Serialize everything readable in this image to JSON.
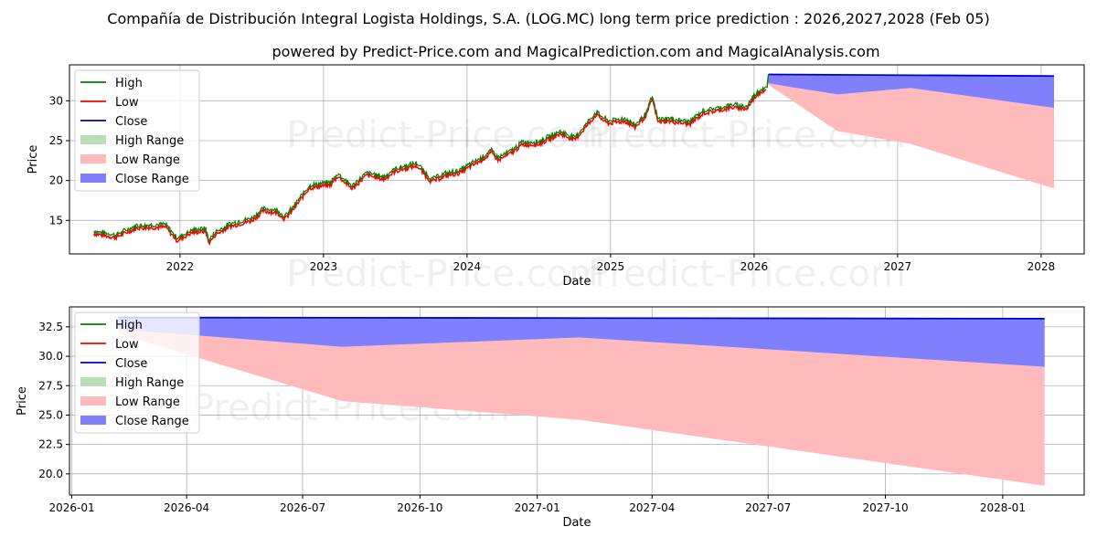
{
  "title": "Compañía de Distribución Integral Logista Holdings, S.A. (LOG.MC) long term price prediction : 2026,2027,2028 (Feb 05)",
  "subtitle": "powered by Predict-Price.com and MagicalPrediction.com and MagicalAnalysis.com",
  "watermark": "Predict-Price.com",
  "colors": {
    "high": "#008000",
    "low": "#ff0000",
    "close": "#0000cd",
    "high_range": "#b9ddb4",
    "low_range": "#ffbbbb",
    "close_range": "#8080ff"
  },
  "legend": [
    "High",
    "Low",
    "Close",
    "High Range",
    "Low Range",
    "Close Range"
  ],
  "chart_data": [
    {
      "type": "line",
      "panel": "history",
      "xlabel": "Date",
      "ylabel": "Price",
      "xlim": [
        2021.23,
        2028.3
      ],
      "ylim": [
        10.8,
        34.5
      ],
      "xticks": [
        2022,
        2023,
        2024,
        2025,
        2026,
        2027,
        2028
      ],
      "xtick_labels": [
        "2022",
        "2023",
        "2024",
        "2025",
        "2026",
        "2027",
        "2028"
      ],
      "yticks": [
        15,
        20,
        25,
        30
      ],
      "ytick_labels": [
        "15",
        "20",
        "25",
        "30"
      ],
      "price_anchors": [
        [
          2021.4,
          13.5
        ],
        [
          2021.55,
          13.0
        ],
        [
          2021.7,
          14.2
        ],
        [
          2021.9,
          14.3
        ],
        [
          2021.98,
          12.6
        ],
        [
          2022.08,
          13.6
        ],
        [
          2022.18,
          13.8
        ],
        [
          2022.2,
          12.3
        ],
        [
          2022.25,
          13.4
        ],
        [
          2022.35,
          14.4
        ],
        [
          2022.5,
          15.1
        ],
        [
          2022.58,
          16.3
        ],
        [
          2022.68,
          16.1
        ],
        [
          2022.73,
          15.3
        ],
        [
          2022.78,
          16.3
        ],
        [
          2022.9,
          19.2
        ],
        [
          2023.05,
          19.6
        ],
        [
          2023.1,
          20.7
        ],
        [
          2023.2,
          19.1
        ],
        [
          2023.3,
          20.8
        ],
        [
          2023.42,
          20.3
        ],
        [
          2023.5,
          21.3
        ],
        [
          2023.65,
          22.0
        ],
        [
          2023.75,
          20.0
        ],
        [
          2023.85,
          20.7
        ],
        [
          2023.95,
          21.1
        ],
        [
          2024.1,
          22.7
        ],
        [
          2024.17,
          23.6
        ],
        [
          2024.22,
          22.7
        ],
        [
          2024.32,
          23.7
        ],
        [
          2024.38,
          24.6
        ],
        [
          2024.5,
          24.7
        ],
        [
          2024.65,
          26.0
        ],
        [
          2024.75,
          25.2
        ],
        [
          2024.9,
          28.4
        ],
        [
          2024.98,
          27.3
        ],
        [
          2025.1,
          27.6
        ],
        [
          2025.17,
          26.8
        ],
        [
          2025.25,
          28.3
        ],
        [
          2025.29,
          30.4
        ],
        [
          2025.33,
          27.5
        ],
        [
          2025.4,
          27.6
        ],
        [
          2025.55,
          27.2
        ],
        [
          2025.65,
          28.6
        ],
        [
          2025.75,
          28.9
        ],
        [
          2025.85,
          29.3
        ],
        [
          2025.95,
          29.1
        ],
        [
          2026.0,
          30.5
        ],
        [
          2026.05,
          31.3
        ],
        [
          2026.09,
          31.6
        ]
      ],
      "close_forecast": {
        "x": [
          2026.1,
          2028.09
        ],
        "values": [
          33.3,
          33.1
        ]
      },
      "close_range": {
        "upper": {
          "x": [
            2026.1,
            2028.09
          ],
          "values": [
            33.3,
            33.1
          ]
        },
        "lower": {
          "x": [
            2026.1,
            2026.3,
            2026.58,
            2027.09,
            2028.09
          ],
          "values": [
            32.2,
            31.6,
            30.8,
            31.6,
            29.1
          ]
        }
      },
      "low_range": {
        "upper": {
          "x": [
            2026.1,
            2026.58,
            2027.09,
            2028.09
          ],
          "values": [
            32.2,
            30.8,
            31.6,
            29.1
          ]
        },
        "lower": {
          "x": [
            2026.1,
            2026.58,
            2027.09,
            2028.09
          ],
          "values": [
            32.0,
            26.2,
            24.6,
            19.0
          ]
        }
      }
    },
    {
      "type": "area",
      "panel": "forecast",
      "xlabel": "Date",
      "ylabel": "Price",
      "xlim": [
        2025.995,
        2028.175
      ],
      "ylim": [
        18.2,
        34.2
      ],
      "xticks": [
        2026.0,
        2026.2466,
        2026.4959,
        2026.7479,
        2027.0,
        2027.2466,
        2027.4959,
        2027.7479,
        2028.0
      ],
      "xtick_labels": [
        "2026-01",
        "2026-04",
        "2026-07",
        "2026-10",
        "2027-01",
        "2027-04",
        "2027-07",
        "2027-10",
        "2028-01"
      ],
      "yticks": [
        20.0,
        22.5,
        25.0,
        27.5,
        30.0,
        32.5
      ],
      "ytick_labels": [
        "20.0",
        "22.5",
        "25.0",
        "27.5",
        "30.0",
        "32.5"
      ],
      "close_forecast": {
        "x": [
          2026.1,
          2028.09
        ],
        "values": [
          33.3,
          33.2
        ]
      },
      "close_range": {
        "upper": {
          "x": [
            2026.1,
            2028.09
          ],
          "values": [
            33.3,
            33.2
          ]
        },
        "lower": {
          "x": [
            2026.1,
            2026.58,
            2027.09,
            2028.09
          ],
          "values": [
            32.3,
            30.8,
            31.6,
            29.1
          ]
        }
      },
      "low_range": {
        "upper": {
          "x": [
            2026.1,
            2026.58,
            2027.09,
            2028.09
          ],
          "values": [
            32.3,
            30.8,
            31.6,
            29.1
          ]
        },
        "lower": {
          "x": [
            2026.1,
            2026.58,
            2027.09,
            2028.09
          ],
          "values": [
            31.9,
            26.2,
            24.6,
            19.0
          ]
        }
      }
    }
  ]
}
